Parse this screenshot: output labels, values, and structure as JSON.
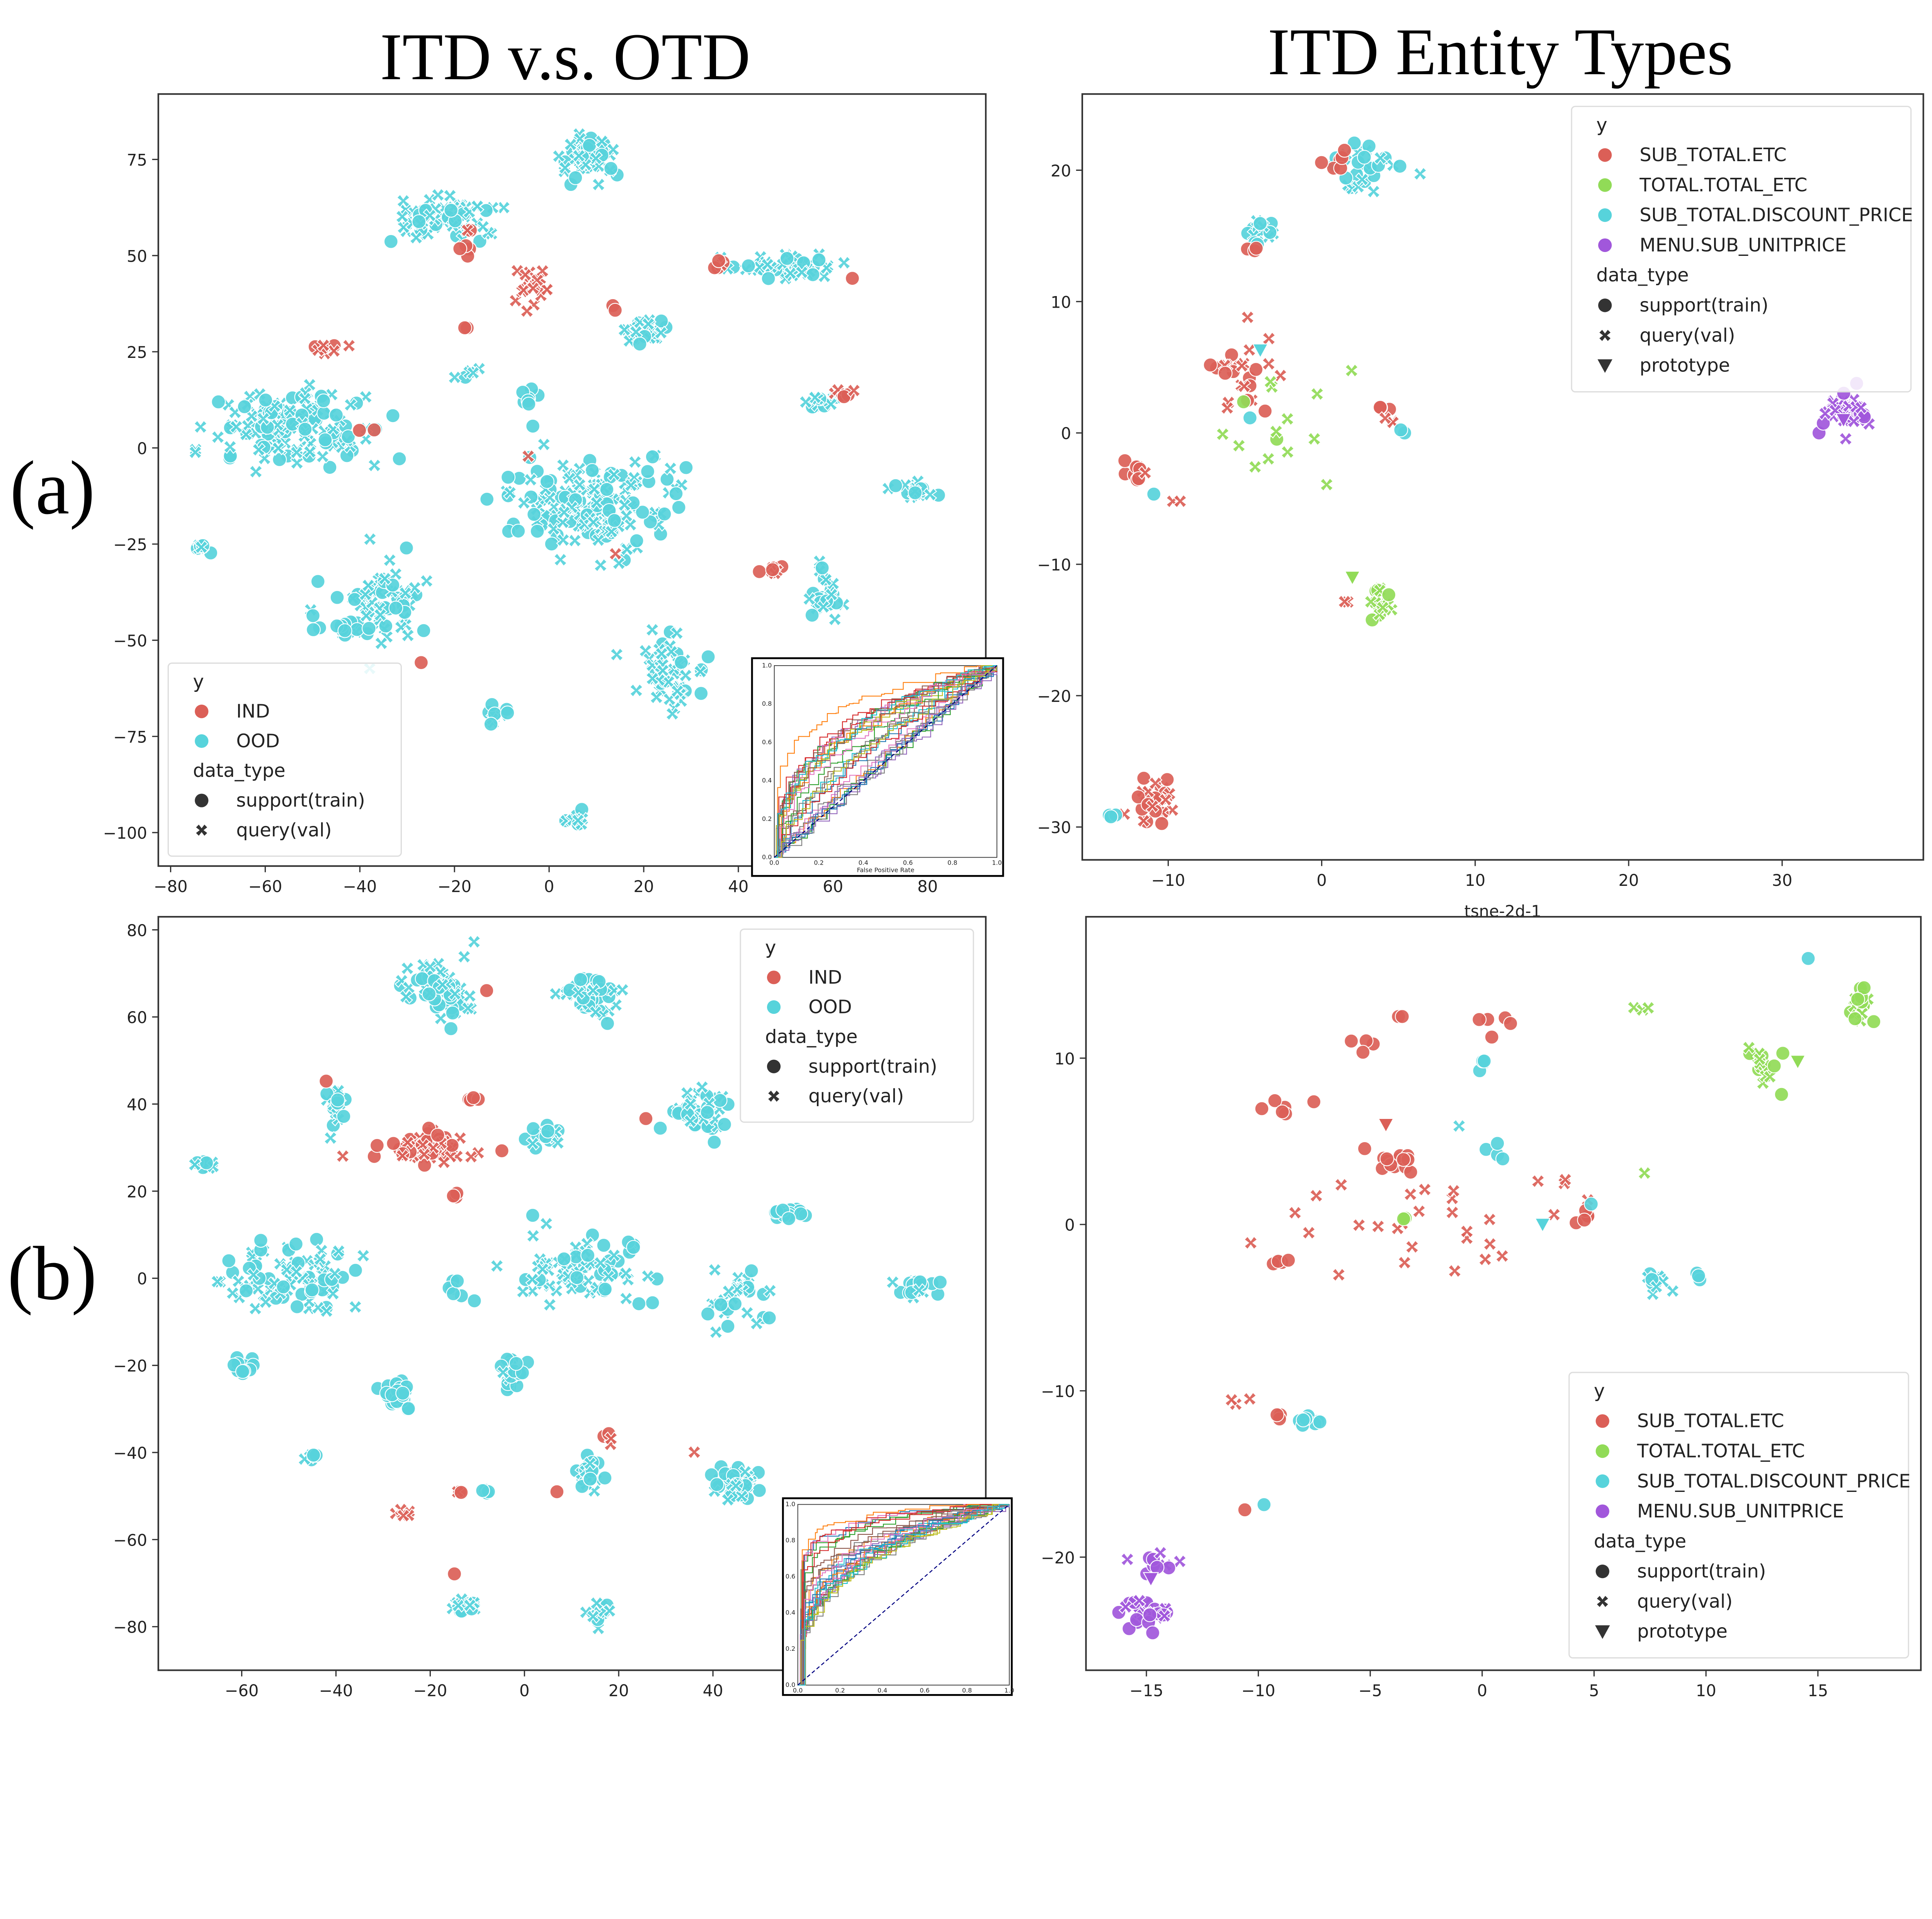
{
  "figure": {
    "titles": [
      "ITD v.s. OTD",
      "ITD Entity Types"
    ],
    "row_labels": [
      "(a)",
      "(b)"
    ]
  },
  "palettes": {
    "binary": [
      "#db5f57",
      "#57d3db"
    ],
    "entity": [
      "#db5f57",
      "#91db57",
      "#57d3db",
      "#a157db"
    ]
  },
  "chart_data": [
    {
      "id": "a_left",
      "type": "scatter",
      "title": "ITD v.s. OTD",
      "xlabel": "",
      "ylabel": "",
      "xlim": [
        -82.6,
        92.3
      ],
      "ylim": [
        -108.7,
        92
      ],
      "xticks": [
        -80,
        -60,
        -40,
        -20,
        0,
        20,
        40,
        60,
        80
      ],
      "yticks": [
        -100,
        -75,
        -50,
        -25,
        0,
        25,
        50,
        75
      ],
      "legend": {
        "placement": "lower-left",
        "hue_title": "y",
        "hue": [
          "IND",
          "OOD"
        ],
        "style_title": "data_type",
        "style": [
          "support(train)",
          "query(val)"
        ]
      },
      "cluster_fields": [
        "x",
        "y",
        "sx",
        "sy",
        "n",
        "class",
        "query_fraction"
      ],
      "clusters": [
        [
          8,
          75,
          4,
          5,
          60,
          1,
          0.6
        ],
        [
          -22,
          60,
          8,
          5,
          70,
          1,
          0.7
        ],
        [
          -18,
          54,
          2,
          5,
          6,
          0,
          0.3
        ],
        [
          -3,
          42,
          4,
          4,
          22,
          0,
          0.85
        ],
        [
          14,
          37,
          1,
          1,
          2,
          0,
          0
        ],
        [
          20,
          30,
          5,
          3,
          25,
          1,
          0.6
        ],
        [
          50,
          47,
          10,
          3,
          45,
          1,
          0.6
        ],
        [
          37,
          48,
          2,
          1.5,
          5,
          0,
          0.5
        ],
        [
          64,
          44,
          0.5,
          0.5,
          1,
          0,
          0
        ],
        [
          -55,
          5,
          14,
          8,
          140,
          1,
          0.55
        ],
        [
          -48,
          26,
          3,
          1.5,
          8,
          0,
          0.6
        ],
        [
          -38,
          4,
          2,
          1,
          2,
          0,
          0
        ],
        [
          -4,
          12,
          2,
          3,
          8,
          1,
          0
        ],
        [
          -18,
          20,
          3,
          1.5,
          6,
          1,
          0.7
        ],
        [
          -17,
          31,
          1,
          1,
          2,
          0,
          0
        ],
        [
          10,
          -15,
          13,
          10,
          180,
          1,
          0.55
        ],
        [
          -4,
          -2,
          1,
          1,
          1,
          0,
          1
        ],
        [
          14,
          -27,
          1,
          1,
          1,
          0,
          1
        ],
        [
          58,
          12,
          4,
          2,
          16,
          1,
          0.6
        ],
        [
          62,
          14,
          2,
          1,
          6,
          0,
          0.6
        ],
        [
          77,
          -11,
          5,
          2,
          20,
          1,
          0.7
        ],
        [
          -73,
          -26,
          1.5,
          1.5,
          8,
          1,
          0.6
        ],
        [
          -35,
          -40,
          8,
          10,
          70,
          1,
          0.7
        ],
        [
          -43,
          -47,
          6,
          2,
          12,
          1,
          0
        ],
        [
          47,
          -32,
          2,
          1,
          8,
          0,
          0.6
        ],
        [
          58,
          -38,
          3,
          5,
          25,
          1,
          0.5
        ],
        [
          25,
          -58,
          5,
          8,
          50,
          1,
          0.7
        ],
        [
          33,
          -54,
          0.5,
          0.5,
          1,
          1,
          0
        ],
        [
          -27,
          -56,
          1,
          1,
          1,
          0,
          0
        ],
        [
          -10,
          -70,
          3,
          3,
          15,
          1,
          0.5
        ],
        [
          6,
          -97,
          2,
          1.5,
          12,
          1,
          0.6
        ]
      ]
    },
    {
      "id": "a_right",
      "type": "scatter",
      "title": "ITD Entity Types",
      "xlabel": "tsne-2d-1",
      "ylabel": "",
      "xlim": [
        -15.6,
        39.2
      ],
      "ylim": [
        -32.5,
        25.8
      ],
      "xticks": [
        -10,
        0,
        10,
        20,
        30
      ],
      "yticks": [
        -30,
        -20,
        -10,
        0,
        10,
        20
      ],
      "legend": {
        "placement": "upper-right",
        "hue_title": "y",
        "hue": [
          "SUB_TOTAL.ETC",
          "TOTAL.TOTAL_ETC",
          "SUB_TOTAL.DISCOUNT_PRICE",
          "MENU.SUB_UNITPRICE"
        ],
        "style_title": "data_type",
        "style": [
          "support(train)",
          "query(val)",
          "prototype"
        ]
      },
      "cluster_fields": [
        "x",
        "y",
        "sx",
        "sy",
        "n",
        "class",
        "query_fraction"
      ],
      "clusters": [
        [
          3,
          20,
          2.5,
          1.8,
          30,
          2,
          0.6
        ],
        [
          1,
          20.5,
          0.8,
          0.6,
          6,
          0,
          0
        ],
        [
          -4,
          15,
          0.8,
          1.5,
          14,
          2,
          0.4
        ],
        [
          -4.5,
          14,
          0.3,
          0.3,
          3,
          0,
          0
        ],
        [
          -5,
          4,
          2.5,
          3,
          25,
          0,
          0.6
        ],
        [
          -3,
          0,
          2.5,
          4,
          14,
          1,
          0.7
        ],
        [
          -12,
          -3,
          0.9,
          0.8,
          10,
          0,
          0.1
        ],
        [
          -11,
          -4.3,
          0.3,
          0.3,
          1,
          2,
          0
        ],
        [
          -4.5,
          1,
          0.3,
          0.3,
          1,
          2,
          0
        ],
        [
          4.3,
          1.5,
          0.5,
          0.6,
          6,
          0,
          0.5
        ],
        [
          5,
          0,
          0.3,
          0.3,
          2,
          2,
          0
        ],
        [
          -9.5,
          -5.5,
          0.3,
          0.3,
          2,
          0,
          1
        ],
        [
          2,
          4.5,
          0.2,
          0.2,
          1,
          1,
          1
        ],
        [
          4,
          -13,
          0.8,
          1.2,
          18,
          1,
          0.5
        ],
        [
          1.5,
          -13,
          0.3,
          0.3,
          2,
          0,
          1
        ],
        [
          -11,
          -28,
          1.2,
          1.3,
          30,
          0,
          0.5
        ],
        [
          -13.5,
          -29,
          0.4,
          0.3,
          3,
          2,
          0
        ],
        [
          34,
          1.5,
          1.5,
          1.1,
          35,
          3,
          0.6
        ]
      ],
      "prototypes": [
        [
          -4,
          6.3,
          2
        ],
        [
          2,
          -11,
          1
        ],
        [
          34,
          1,
          3
        ]
      ]
    },
    {
      "id": "b_left",
      "type": "scatter",
      "title": "",
      "xlabel": "",
      "ylabel": "",
      "xlim": [
        -77.7,
        97.9
      ],
      "ylim": [
        -90,
        83
      ],
      "xticks": [
        -60,
        -40,
        -20,
        0,
        20,
        40
      ],
      "yticks": [
        -80,
        -60,
        -40,
        -20,
        0,
        20,
        40,
        60,
        80
      ],
      "legend": {
        "placement": "upper-right",
        "hue_title": "y",
        "hue": [
          "IND",
          "OOD"
        ],
        "style_title": "data_type",
        "style": [
          "support(train)",
          "query(val)"
        ]
      },
      "cluster_fields": [
        "x",
        "y",
        "sx",
        "sy",
        "n",
        "class",
        "query_fraction"
      ],
      "clusters": [
        [
          -18,
          66,
          6,
          5,
          60,
          1,
          0.6
        ],
        [
          -8,
          66,
          0.5,
          0.5,
          1,
          0,
          0
        ],
        [
          14,
          64,
          5,
          4,
          45,
          1,
          0.5
        ],
        [
          -20,
          30,
          9,
          3,
          55,
          0,
          0.5
        ],
        [
          -14,
          19,
          1,
          1,
          3,
          0,
          0.5
        ],
        [
          -11,
          41,
          1.5,
          0.5,
          4,
          0,
          0
        ],
        [
          -40,
          38,
          2,
          5,
          15,
          1,
          0.6
        ],
        [
          -42,
          45,
          0.5,
          0.5,
          1,
          0,
          0
        ],
        [
          -68,
          26,
          2,
          1.5,
          8,
          1,
          0.6
        ],
        [
          4,
          33,
          3,
          2,
          15,
          1,
          0.4
        ],
        [
          26,
          37,
          0.5,
          0.5,
          1,
          0,
          0
        ],
        [
          37,
          38,
          6,
          4,
          45,
          1,
          0.5
        ],
        [
          56,
          15,
          3,
          1.5,
          15,
          1,
          0
        ],
        [
          -50,
          0,
          11,
          7,
          90,
          1,
          0.55
        ],
        [
          -60,
          -20,
          2.5,
          2,
          15,
          1,
          0
        ],
        [
          -27,
          -26,
          2.5,
          4,
          30,
          1,
          0
        ],
        [
          -15,
          -2,
          1.5,
          1.5,
          6,
          1,
          0
        ],
        [
          12,
          2,
          13,
          7,
          80,
          1,
          0.55
        ],
        [
          -3,
          -22,
          2,
          4,
          25,
          1,
          0.2
        ],
        [
          45,
          -5,
          6,
          6,
          30,
          1,
          0.6
        ],
        [
          84,
          -2,
          3,
          2.5,
          20,
          1,
          0.4
        ],
        [
          -45,
          -40,
          1.5,
          1.5,
          6,
          1,
          0.5
        ],
        [
          14,
          -45,
          3,
          3,
          25,
          1,
          0.5
        ],
        [
          18,
          -37,
          1.5,
          1.5,
          4,
          0,
          0.5
        ],
        [
          -26,
          -54,
          1.5,
          1,
          5,
          0,
          1
        ],
        [
          -14,
          -49,
          1,
          0.5,
          4,
          0,
          0.5
        ],
        [
          -8,
          -49,
          1,
          0.8,
          4,
          1,
          0.3
        ],
        [
          7,
          -49,
          0.3,
          0.3,
          1,
          0,
          0
        ],
        [
          36,
          -40,
          0.3,
          0.3,
          1,
          0,
          1
        ],
        [
          45,
          -47,
          4,
          4,
          45,
          1,
          0.5
        ],
        [
          -15,
          -68,
          0.3,
          0.3,
          1,
          0,
          0
        ],
        [
          -13,
          -75,
          2,
          2,
          15,
          1,
          0.6
        ],
        [
          16,
          -77,
          2.5,
          2.5,
          15,
          1,
          0.6
        ]
      ]
    },
    {
      "id": "b_right",
      "type": "scatter",
      "title": "",
      "xlabel": "",
      "ylabel": "",
      "xlim": [
        -17.7,
        19.6
      ],
      "ylim": [
        -26.8,
        18.5
      ],
      "xticks": [
        -15,
        -10,
        -5,
        0,
        5,
        10,
        15
      ],
      "yticks": [
        -20,
        -10,
        0,
        10
      ],
      "legend": {
        "placement": "lower-right",
        "hue_title": "y",
        "hue": [
          "SUB_TOTAL.ETC",
          "TOTAL.TOTAL_ETC",
          "SUB_TOTAL.DISCOUNT_PRICE",
          "MENU.SUB_UNITPRICE"
        ],
        "style_title": "data_type",
        "style": [
          "support(train)",
          "query(val)",
          "prototype"
        ]
      },
      "cluster_fields": [
        "x",
        "y",
        "sx",
        "sy",
        "n",
        "class",
        "query_fraction"
      ],
      "clusters": [
        [
          -4,
          3.8,
          0.9,
          0.8,
          15,
          0,
          0
        ],
        [
          -2,
          0.5,
          6,
          3,
          30,
          0,
          1
        ],
        [
          -5.5,
          11,
          0.6,
          0.6,
          4,
          0,
          0
        ],
        [
          -3.5,
          12.6,
          0.2,
          0.2,
          2,
          0,
          0
        ],
        [
          0.8,
          12,
          0.7,
          0.5,
          5,
          0,
          0
        ],
        [
          -9,
          7,
          0.9,
          1,
          6,
          0,
          0
        ],
        [
          -9,
          -2.3,
          0.6,
          0.2,
          5,
          0,
          0
        ],
        [
          4.5,
          0.5,
          0.4,
          0.6,
          5,
          0,
          0.2
        ],
        [
          -11,
          -10.6,
          0.5,
          0.3,
          3,
          0,
          1
        ],
        [
          -9,
          -11.6,
          0.3,
          0.2,
          3,
          0,
          0
        ],
        [
          -10.5,
          -17.2,
          0.2,
          0.2,
          1,
          0,
          0
        ],
        [
          12.5,
          9.5,
          0.6,
          1,
          20,
          1,
          0.5
        ],
        [
          17,
          13,
          0.6,
          1,
          20,
          1,
          0.4
        ],
        [
          7.5,
          13,
          0.6,
          0.2,
          3,
          1,
          0.4
        ],
        [
          -3.5,
          0.3,
          0.4,
          0.2,
          2,
          1,
          0
        ],
        [
          7.3,
          3,
          0.1,
          0.1,
          1,
          1,
          1
        ],
        [
          0,
          9.8,
          0.3,
          0.5,
          4,
          2,
          0
        ],
        [
          0.6,
          4,
          0.5,
          0.6,
          4,
          2,
          0
        ],
        [
          8,
          -3.6,
          0.6,
          1,
          10,
          2,
          0.6
        ],
        [
          9.5,
          -3.2,
          0.4,
          0.2,
          3,
          2,
          0
        ],
        [
          -7.5,
          -12,
          0.5,
          0.4,
          8,
          2,
          0
        ],
        [
          -1,
          6,
          0.1,
          0.1,
          1,
          2,
          1
        ],
        [
          -9.8,
          -17,
          0.2,
          0.2,
          1,
          2,
          0
        ],
        [
          14.6,
          16,
          0.1,
          0.1,
          1,
          2,
          0
        ],
        [
          4.8,
          1,
          0.2,
          0.2,
          1,
          2,
          0
        ],
        [
          -15,
          -23.3,
          0.9,
          0.9,
          30,
          3,
          0.4
        ],
        [
          -14.8,
          -20.3,
          0.9,
          0.5,
          10,
          3,
          0.6
        ]
      ],
      "prototypes": [
        [
          -4.3,
          6,
          0
        ],
        [
          2.7,
          0,
          2
        ],
        [
          14.1,
          9.8,
          1
        ],
        [
          -14.8,
          -21.3,
          3
        ]
      ]
    },
    {
      "id": "a_roc",
      "type": "line",
      "xlabel": "False Positive Rate",
      "ylabel": "",
      "xlim": [
        0,
        1
      ],
      "ylim": [
        0,
        1
      ],
      "xticks": [
        0.0,
        0.2,
        0.4,
        0.6,
        0.8,
        1.0
      ],
      "yticks": [
        0.0,
        0.2,
        0.4,
        0.6,
        0.8,
        1.0
      ],
      "n_series": 30,
      "diagonal": "dashed navy"
    },
    {
      "id": "b_roc",
      "type": "line",
      "xlabel": "",
      "ylabel": "",
      "xlim": [
        0,
        1
      ],
      "ylim": [
        0,
        1
      ],
      "xticks": [
        0.0,
        0.2,
        0.4,
        0.6,
        0.8,
        1.0
      ],
      "yticks": [
        0.0,
        0.2,
        0.4,
        0.6,
        0.8,
        1.0
      ],
      "n_series": 30,
      "diagonal": "dashed navy"
    }
  ]
}
